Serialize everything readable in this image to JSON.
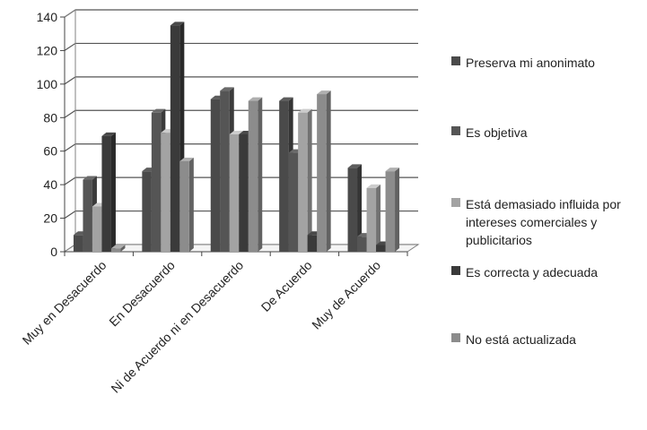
{
  "chart_data": {
    "type": "bar",
    "categories": [
      "Muy en Desacuerdo",
      "En Desacuerdo",
      "Ni de Acuerdo ni en Desacuerdo",
      "De Acuerdo",
      "Muy de Acuerdo"
    ],
    "series": [
      {
        "name": "Preserva mi anonimato",
        "values": [
          10,
          48,
          91,
          90,
          50
        ],
        "color": "#4a4a4a"
      },
      {
        "name": "Es objetiva",
        "values": [
          43,
          83,
          96,
          59,
          9
        ],
        "color": "#555555"
      },
      {
        "name": "Está demasiado influida por intereses comerciales y publicitarios",
        "values": [
          27,
          71,
          70,
          83,
          38
        ],
        "color": "#a3a3a3"
      },
      {
        "name": "Es correcta y adecuada",
        "values": [
          69,
          135,
          70,
          10,
          4
        ],
        "color": "#3a3a3a"
      },
      {
        "name": "No está actualizada",
        "values": [
          2,
          54,
          90,
          94,
          48
        ],
        "color": "#8c8c8c"
      }
    ],
    "y_ticks": [
      "0",
      "20",
      "40",
      "60",
      "80",
      "100",
      "120",
      "140"
    ],
    "ylim": [
      0,
      140
    ],
    "grid": true,
    "legend_position": "right",
    "title": "",
    "xlabel": "",
    "ylabel": ""
  }
}
